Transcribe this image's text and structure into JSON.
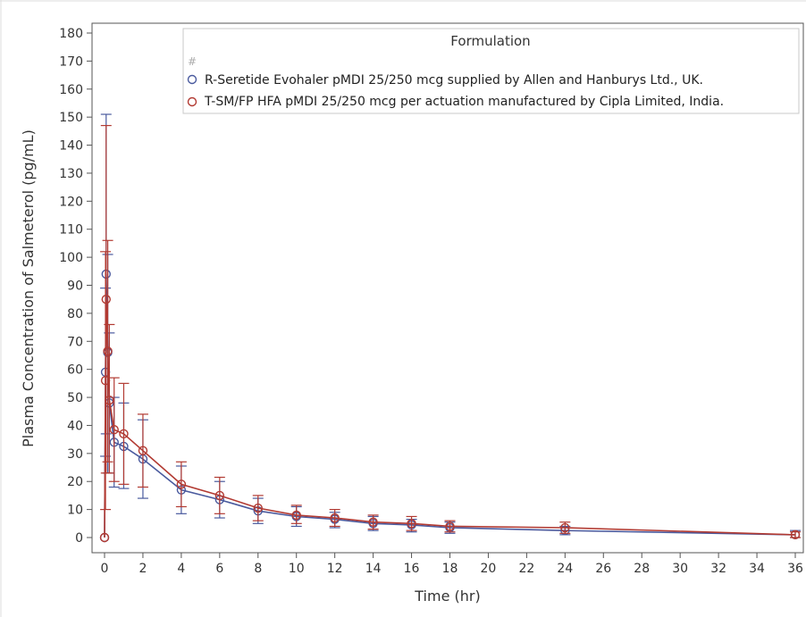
{
  "chart_data": {
    "type": "line",
    "xlabel": "Time (hr)",
    "ylabel": "Plasma Concentration of Salmeterol (pg/mL)",
    "xlim": [
      0,
      36
    ],
    "ylim": [
      0,
      180
    ],
    "xticks": [
      0,
      2,
      4,
      6,
      8,
      10,
      12,
      14,
      16,
      18,
      20,
      22,
      24,
      26,
      28,
      30,
      32,
      34,
      36
    ],
    "yticks": [
      0,
      10,
      20,
      30,
      40,
      50,
      60,
      70,
      80,
      90,
      100,
      110,
      120,
      130,
      140,
      150,
      160,
      170,
      180
    ],
    "grid": false,
    "legend": {
      "title": "Formulation",
      "placement": "top-right",
      "placeholder_symbol": "#"
    },
    "series": [
      {
        "name": "R-Seretide Evohaler pMDI 25/250 mcg supplied by Allen and Hanburys Ltd., UK.",
        "color": "#4a5a9e",
        "points": [
          {
            "x": 0,
            "y": 0,
            "lo": 0,
            "hi": 0
          },
          {
            "x": 0.05,
            "y": 59,
            "lo": 29,
            "hi": 89
          },
          {
            "x": 0.083,
            "y": 94,
            "lo": 37,
            "hi": 151
          },
          {
            "x": 0.167,
            "y": 66,
            "lo": 23,
            "hi": 101
          },
          {
            "x": 0.25,
            "y": 48,
            "lo": 23,
            "hi": 73
          },
          {
            "x": 0.5,
            "y": 34,
            "lo": 18,
            "hi": 50
          },
          {
            "x": 1,
            "y": 32.5,
            "lo": 17.5,
            "hi": 48
          },
          {
            "x": 2,
            "y": 28,
            "lo": 14,
            "hi": 42
          },
          {
            "x": 4,
            "y": 17,
            "lo": 8.5,
            "hi": 25.5
          },
          {
            "x": 6,
            "y": 13.5,
            "lo": 7,
            "hi": 20
          },
          {
            "x": 8,
            "y": 9.5,
            "lo": 5,
            "hi": 14
          },
          {
            "x": 10,
            "y": 7.5,
            "lo": 4,
            "hi": 11
          },
          {
            "x": 12,
            "y": 6.5,
            "lo": 3.5,
            "hi": 9
          },
          {
            "x": 14,
            "y": 5,
            "lo": 2.5,
            "hi": 7.5
          },
          {
            "x": 16,
            "y": 4.5,
            "lo": 2,
            "hi": 6.5
          },
          {
            "x": 18,
            "y": 3.5,
            "lo": 1.5,
            "hi": 5.5
          },
          {
            "x": 24,
            "y": 2.5,
            "lo": 1,
            "hi": 4
          },
          {
            "x": 36,
            "y": 1,
            "lo": 0,
            "hi": 2.5
          }
        ]
      },
      {
        "name": "T-SM/FP HFA pMDI 25/250 mcg per actuation manufactured by Cipla Limited, India.",
        "color": "#b23a32",
        "points": [
          {
            "x": 0,
            "y": 0,
            "lo": 0,
            "hi": 0
          },
          {
            "x": 0.05,
            "y": 56,
            "lo": 10,
            "hi": 102
          },
          {
            "x": 0.083,
            "y": 85,
            "lo": 23,
            "hi": 147
          },
          {
            "x": 0.167,
            "y": 66.5,
            "lo": 27,
            "hi": 106
          },
          {
            "x": 0.25,
            "y": 49,
            "lo": 23,
            "hi": 76
          },
          {
            "x": 0.5,
            "y": 38.5,
            "lo": 20,
            "hi": 57
          },
          {
            "x": 1,
            "y": 37,
            "lo": 19,
            "hi": 55
          },
          {
            "x": 2,
            "y": 31,
            "lo": 18,
            "hi": 44
          },
          {
            "x": 4,
            "y": 19,
            "lo": 11,
            "hi": 27
          },
          {
            "x": 6,
            "y": 15,
            "lo": 8.5,
            "hi": 21.5
          },
          {
            "x": 8,
            "y": 10.5,
            "lo": 6,
            "hi": 15
          },
          {
            "x": 10,
            "y": 8,
            "lo": 5,
            "hi": 11.5
          },
          {
            "x": 12,
            "y": 7,
            "lo": 4,
            "hi": 10
          },
          {
            "x": 14,
            "y": 5.5,
            "lo": 3,
            "hi": 8
          },
          {
            "x": 16,
            "y": 5,
            "lo": 2.5,
            "hi": 7.5
          },
          {
            "x": 18,
            "y": 4,
            "lo": 2,
            "hi": 6
          },
          {
            "x": 24,
            "y": 3.5,
            "lo": 1.5,
            "hi": 5.5
          },
          {
            "x": 36,
            "y": 1,
            "lo": 0,
            "hi": 2
          }
        ]
      }
    ]
  }
}
